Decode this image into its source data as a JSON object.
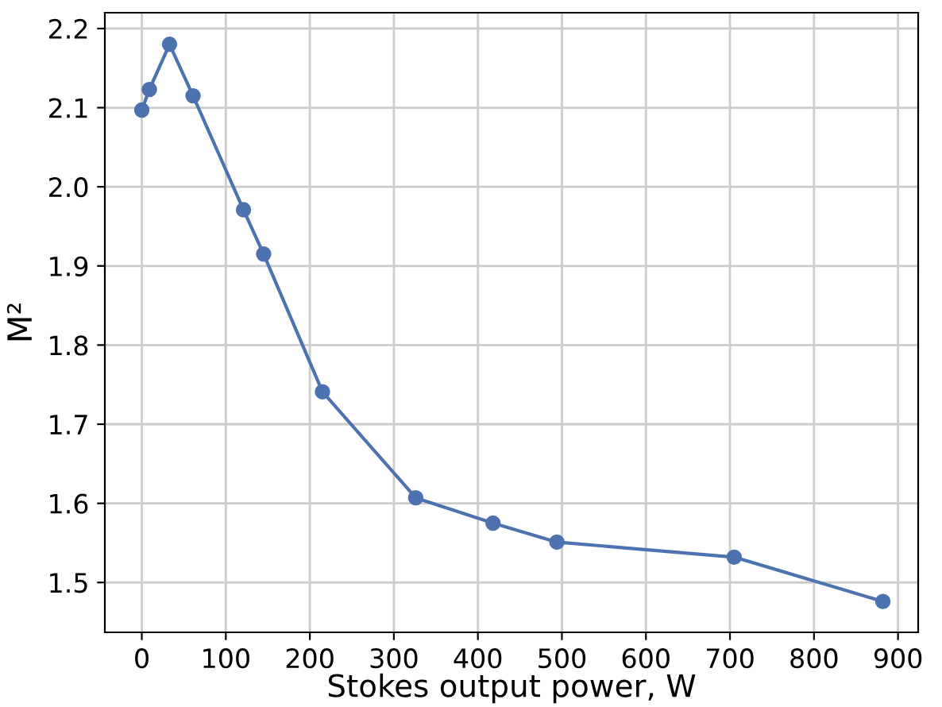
{
  "chart_data": {
    "type": "line",
    "xlabel": "Stokes output power, W",
    "ylabel": "M²",
    "x": [
      0,
      9,
      33,
      61,
      121,
      145,
      215,
      326,
      418,
      494,
      705,
      882
    ],
    "series": [
      {
        "color": "#4c72b0",
        "values": [
          2.097,
          2.123,
          2.18,
          2.115,
          1.971,
          1.915,
          1.741,
          1.607,
          1.575,
          1.551,
          1.532,
          1.476
        ]
      }
    ],
    "xlim": [
      -44,
      924
    ],
    "ylim": [
      1.437,
      2.22
    ],
    "xticks": [
      0,
      100,
      200,
      300,
      400,
      500,
      600,
      700,
      800,
      900
    ],
    "yticks": [
      1.5,
      1.6,
      1.7,
      1.8,
      1.9,
      {
        "value": 2.0,
        "label": "2.0"
      },
      2.1,
      2.2
    ],
    "grid": true,
    "marker": "circle",
    "line_style": "solid"
  }
}
